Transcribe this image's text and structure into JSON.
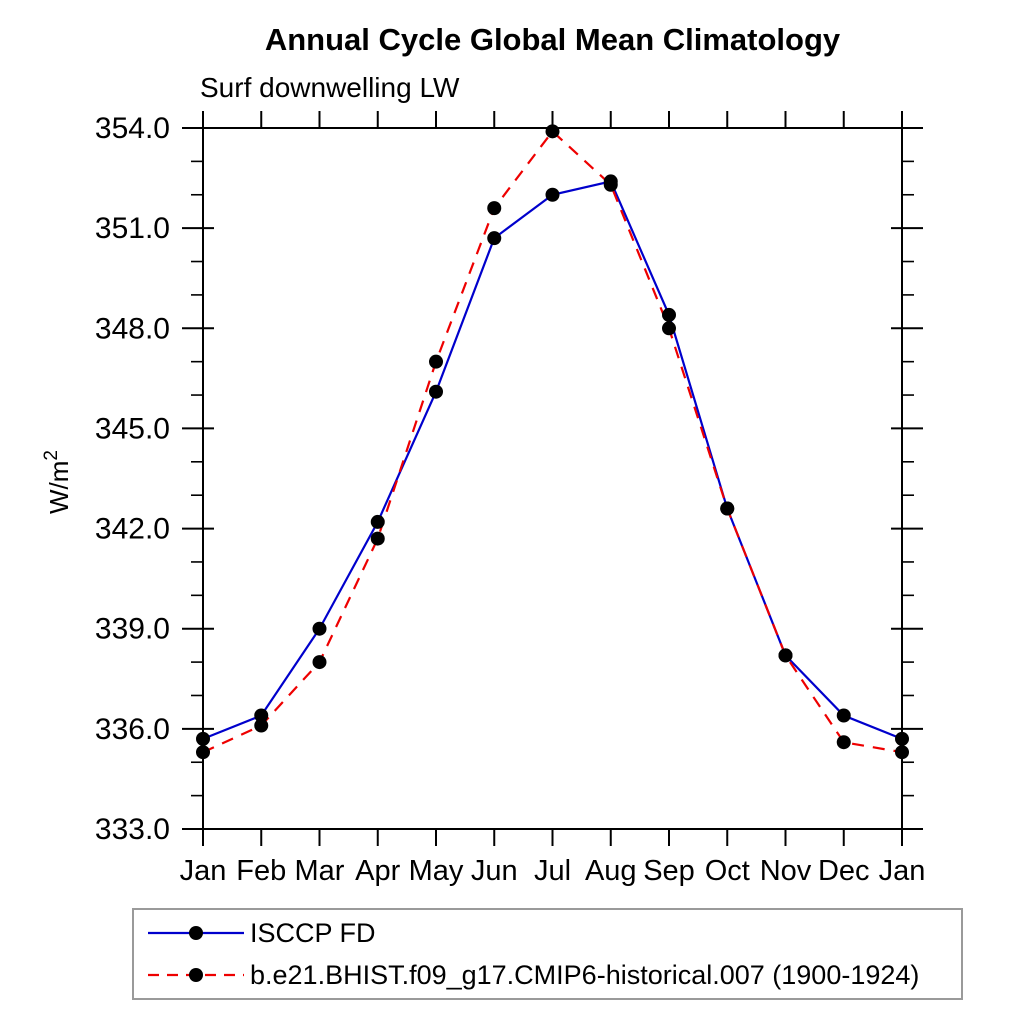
{
  "chart_data": {
    "type": "line",
    "title": "Annual Cycle Global Mean Climatology",
    "subtitle": "Surf downwelling LW",
    "ylabel_main": "W/m",
    "ylabel_sup": "2",
    "x_categories": [
      "Jan",
      "Feb",
      "Mar",
      "Apr",
      "May",
      "Jun",
      "Jul",
      "Aug",
      "Sep",
      "Oct",
      "Nov",
      "Dec",
      "Jan"
    ],
    "ylim": [
      333.0,
      354.0
    ],
    "ytick_major_step": 3.0,
    "ytick_minor_step": 1.0,
    "grid": false,
    "legend_position": "bottom-left",
    "marker": "filled-circle",
    "marker_color": "#000000",
    "series": [
      {
        "name": "ISCCP FD",
        "color": "#0000cc",
        "style": "solid",
        "values": [
          335.7,
          336.4,
          339.0,
          342.2,
          346.1,
          350.7,
          352.0,
          352.4,
          348.4,
          342.6,
          338.2,
          336.4,
          335.7
        ]
      },
      {
        "name": "b.e21.BHIST.f09_g17.CMIP6-historical.007 (1900-1924)",
        "color": "#ee0000",
        "style": "dashed",
        "values": [
          335.3,
          336.1,
          338.0,
          341.7,
          347.0,
          351.6,
          353.9,
          352.3,
          348.0,
          342.6,
          338.2,
          335.6,
          335.3
        ]
      }
    ]
  }
}
